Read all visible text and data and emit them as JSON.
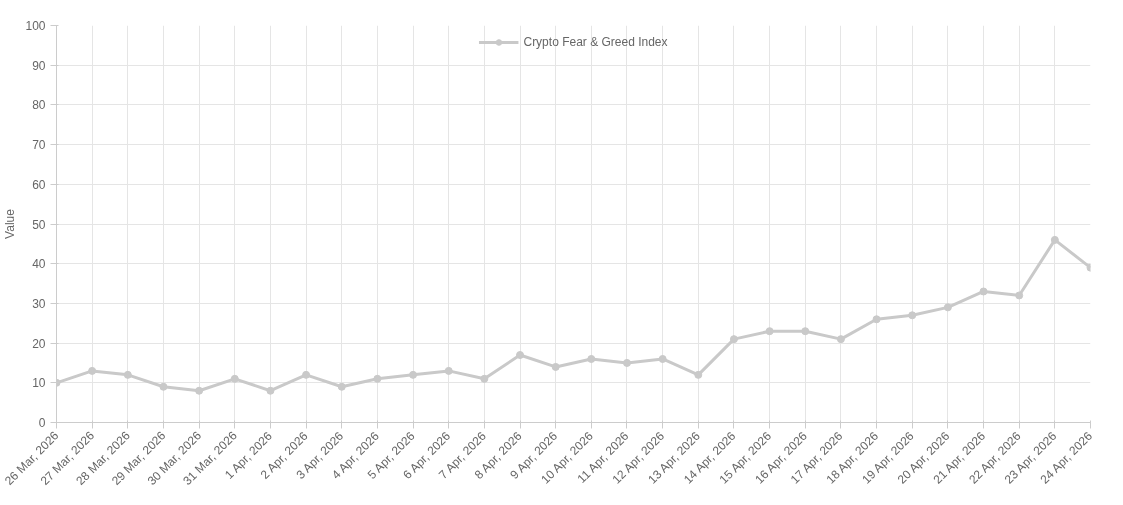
{
  "chart_data": {
    "type": "line",
    "ylabel": "Value",
    "categories": [
      "26 Mar, 2026",
      "27 Mar, 2026",
      "28 Mar, 2026",
      "29 Mar, 2026",
      "30 Mar, 2026",
      "31 Mar, 2026",
      "1 Apr, 2026",
      "2 Apr, 2026",
      "3 Apr, 2026",
      "4 Apr, 2026",
      "5 Apr, 2026",
      "6 Apr, 2026",
      "7 Apr, 2026",
      "8 Apr, 2026",
      "9 Apr, 2026",
      "10 Apr, 2026",
      "11 Apr, 2026",
      "12 Apr, 2026",
      "13 Apr, 2026",
      "14 Apr, 2026",
      "15 Apr, 2026",
      "16 Apr, 2026",
      "17 Apr, 2026",
      "18 Apr, 2026",
      "19 Apr, 2026",
      "20 Apr, 2026",
      "21 Apr, 2026",
      "22 Apr, 2026",
      "23 Apr, 2026",
      "24 Apr, 2026"
    ],
    "series": [
      {
        "name": "Crypto Fear & Greed Index",
        "color": "#c9c9c9",
        "values": [
          10,
          13,
          12,
          9,
          8,
          11,
          8,
          12,
          9,
          11,
          12,
          13,
          11,
          17,
          14,
          16,
          15,
          16,
          12,
          21,
          23,
          23,
          21,
          26,
          27,
          29,
          33,
          32,
          46,
          39
        ]
      }
    ],
    "ylim": [
      0,
      100
    ],
    "yticks": [
      0,
      10,
      20,
      30,
      40,
      50,
      60,
      70,
      80,
      90,
      100
    ],
    "grid": true,
    "legend": "top",
    "marker": "circle",
    "line_style": "solid"
  }
}
